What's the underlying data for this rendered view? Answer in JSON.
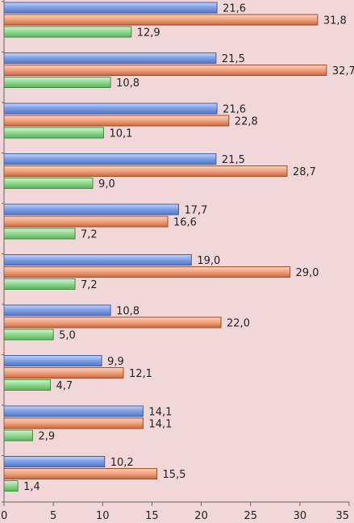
{
  "chart_data": {
    "type": "bar",
    "orientation": "horizontal",
    "xlim": [
      0,
      35
    ],
    "xticks": [
      "0",
      "5",
      "10",
      "15",
      "20",
      "25",
      "30",
      "35"
    ],
    "grid": false,
    "legend": "none",
    "series": [
      {
        "color": "#7a9fe6",
        "stroke": "#3f5fa8",
        "values": [
          21.6,
          21.5,
          21.6,
          21.5,
          17.7,
          19.0,
          10.8,
          9.9,
          14.1,
          10.2
        ],
        "labels": [
          "21,6",
          "21,5",
          "21,6",
          "21,5",
          "17,7",
          "19,0",
          "10,8",
          "9,9",
          "14,1",
          "10,2"
        ]
      },
      {
        "color": "#f0a17a",
        "stroke": "#a84a27",
        "values": [
          31.8,
          32.7,
          22.8,
          28.7,
          16.6,
          29.0,
          22.0,
          12.1,
          14.1,
          15.5
        ],
        "labels": [
          "31,8",
          "32,7",
          "22,8",
          "28,7",
          "16,6",
          "29,0",
          "22,0",
          "12,1",
          "14,1",
          "15,5"
        ]
      },
      {
        "color": "#8fd98f",
        "stroke": "#3f8f3f",
        "values": [
          12.9,
          10.8,
          10.1,
          9.0,
          7.2,
          7.2,
          5.0,
          4.7,
          2.9,
          1.4
        ],
        "labels": [
          "12,9",
          "10,8",
          "10,1",
          "9,0",
          "7,2",
          "7,2",
          "5,0",
          "4,7",
          "2,9",
          "1,4"
        ]
      }
    ]
  }
}
